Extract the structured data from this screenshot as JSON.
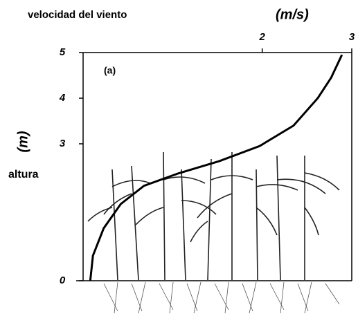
{
  "chart_data": {
    "type": "line",
    "x_label": "velocidad del viento",
    "x_unit": "(m/s)",
    "y_label": "altura",
    "y_unit": "(m)",
    "panel_label": "(a)",
    "x": [
      0.08,
      0.11,
      0.23,
      0.42,
      0.68,
      1.06,
      1.52,
      1.97,
      2.35,
      2.62,
      2.77,
      2.89
    ],
    "values": [
      0,
      0.55,
      1.15,
      1.68,
      2.08,
      2.35,
      2.62,
      2.95,
      3.4,
      4.0,
      4.45,
      4.95
    ],
    "color": "#000000",
    "xlim": [
      0,
      3
    ],
    "xticks": [
      2,
      3
    ],
    "ylim": [
      0,
      5
    ],
    "yticks": [
      0,
      3,
      4,
      5
    ]
  }
}
